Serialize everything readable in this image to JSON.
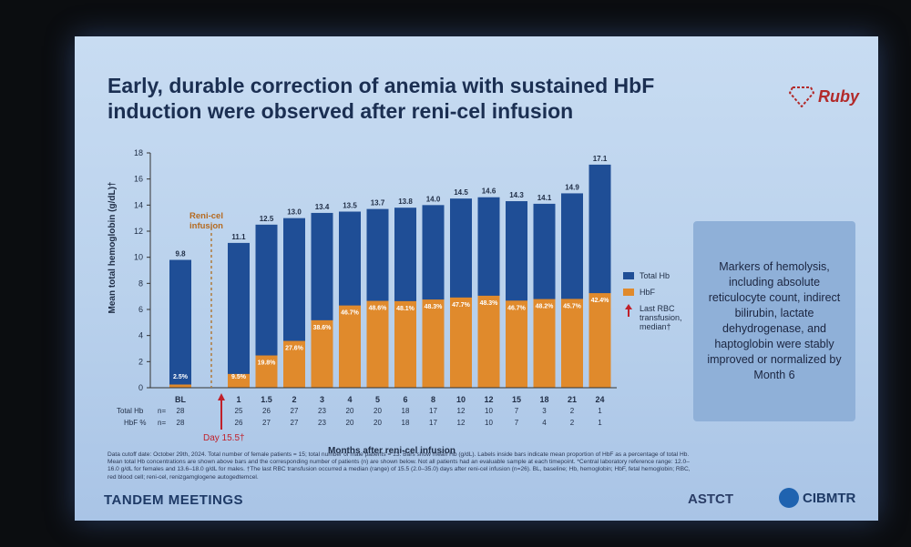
{
  "title": "Early, durable correction of anemia with sustained HbF induction were observed after reni-cel infusion",
  "logo": "Ruby",
  "chart_data": {
    "type": "bar",
    "title": "",
    "ylabel": "Mean total hemoglobin (g/dL)†",
    "xlabel": "Months after reni-cel infusion",
    "ylim": [
      0,
      18
    ],
    "yticks": [
      0,
      2,
      4,
      6,
      8,
      10,
      12,
      14,
      16,
      18
    ],
    "categories": [
      "BL",
      "1",
      "1.5",
      "2",
      "3",
      "4",
      "5",
      "6",
      "8",
      "10",
      "12",
      "15",
      "18",
      "21",
      "24"
    ],
    "total_hb": [
      9.8,
      11.1,
      12.5,
      13.0,
      13.4,
      13.5,
      13.7,
      13.8,
      14.0,
      14.5,
      14.6,
      14.3,
      14.1,
      14.9,
      17.1
    ],
    "total_hb_labels": [
      "9.8",
      "11.1",
      "12.5",
      "13.0",
      "13.4",
      "13.5",
      "13.7",
      "13.8",
      "14.0",
      "14.5",
      "14.6",
      "14.3",
      "14.1",
      "14.9",
      "17.1"
    ],
    "hbf_percent": [
      2.5,
      9.5,
      19.8,
      27.6,
      38.6,
      46.7,
      48.6,
      48.1,
      48.3,
      47.7,
      48.3,
      46.7,
      48.2,
      45.7,
      42.4
    ],
    "hbf_labels": [
      "2.5%",
      "9.5%",
      "19.8%",
      "27.6%",
      "38.6%",
      "46.7%",
      "48.6%",
      "48.1%",
      "48.3%",
      "47.7%",
      "48.3%",
      "46.7%",
      "48.2%",
      "45.7%",
      "42.4%"
    ],
    "n_total_hb": [
      "28",
      "25",
      "26",
      "27",
      "23",
      "20",
      "20",
      "18",
      "17",
      "12",
      "10",
      "7",
      "3",
      "2",
      "1"
    ],
    "n_hbf": [
      "28",
      "26",
      "27",
      "27",
      "23",
      "20",
      "20",
      "18",
      "17",
      "12",
      "10",
      "7",
      "4",
      "2",
      "1"
    ],
    "row_label_total": "Total Hb",
    "row_label_hbf": "HbF %",
    "n_label": "n=",
    "annotation_infusion": "Reni-cel infusion",
    "annotation_day": "Day 15.5†",
    "colors": {
      "total": "#1f4e96",
      "hbf": "#e08a2c",
      "arrow": "#c0202a"
    }
  },
  "legend": {
    "total": "Total Hb",
    "hbf": "HbF",
    "transfusion": "Last RBC transfusion, median†"
  },
  "panel_text": "Markers of hemolysis, including absolute reticulocyte count, indirect bilirubin, lactate dehydrogenase, and haptoglobin were stably improved or normalized by Month 6",
  "footnote": "Data cutoff date: October 29th, 2024. Total number of female patients = 15; total number of male patients = 13. Bars show mean Hb (g/dL). Labels inside bars indicate mean proportion of HbF as a percentage of total Hb. Mean total Hb concentrations are shown above bars and the corresponding number of patients (n) are shown below. Not all patients had an evaluable sample at each timepoint. *Central laboratory reference range: 12.0–16.0 g/dL for females and 13.6–18.0 g/dL for males. †The last RBC transfusion occurred a median (range) of 15.5 (2.0–35.0) days after reni-cel infusion (n=26). BL, baseline; Hb, hemoglobin; HbF, fetal hemoglobin; RBC, red blood cell; reni-cel, renizgamglogene autogedtemcel.",
  "footer": {
    "meeting": "TANDEM MEETINGS",
    "astct": "ASTCT",
    "cibmtr": "CIBMTR"
  }
}
